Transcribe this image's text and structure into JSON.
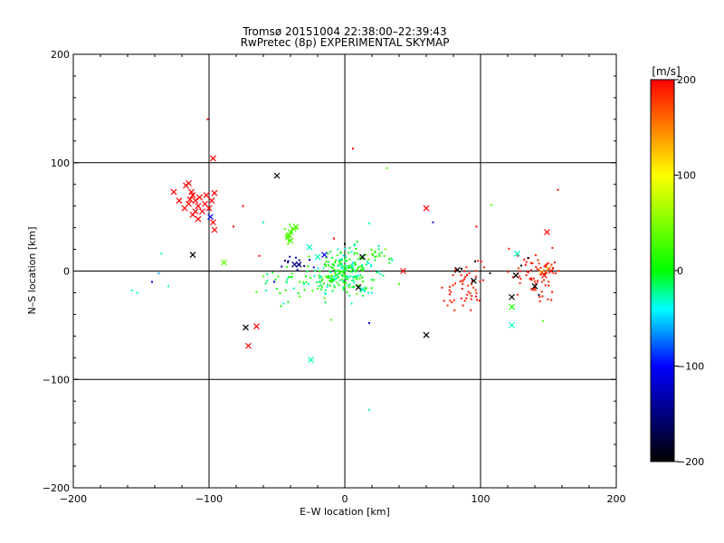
{
  "chart_data": {
    "type": "scatter",
    "title": "Tromsø 20151004 22:38:00–22:39:43",
    "subtitle": "RwPretec (8p) EXPERIMENTAL SKYMAP",
    "xlabel": "E–W location [km]",
    "ylabel": "N–S location [km]",
    "xlim": [
      -200,
      200
    ],
    "ylim": [
      -200,
      200
    ],
    "xticks": [
      -200,
      -100,
      0,
      100,
      200
    ],
    "yticks": [
      -200,
      -100,
      0,
      100,
      200
    ],
    "grid": true,
    "colorbar": {
      "label": "[m/s]",
      "min": -200,
      "max": 200,
      "ticks": [
        -200,
        -100,
        0,
        100,
        200
      ],
      "colors": [
        "#000000",
        "#0000ff",
        "#00ffff",
        "#00ff00",
        "#ffff00",
        "#ff0000"
      ]
    },
    "points_note": "v = line-of-sight velocity in m/s; marker x = cross, d = small dot",
    "points": [
      {
        "x": -113,
        "y": 73,
        "v": 200,
        "m": "x"
      },
      {
        "x": -117,
        "y": 79,
        "v": 200,
        "m": "x"
      },
      {
        "x": -115,
        "y": 81,
        "v": 200,
        "m": "x"
      },
      {
        "x": -112,
        "y": 70,
        "v": 200,
        "m": "x"
      },
      {
        "x": -110,
        "y": 65,
        "v": 200,
        "m": "x"
      },
      {
        "x": -115,
        "y": 62,
        "v": 200,
        "m": "x"
      },
      {
        "x": -118,
        "y": 58,
        "v": 200,
        "m": "x"
      },
      {
        "x": -122,
        "y": 65,
        "v": 200,
        "m": "x"
      },
      {
        "x": -108,
        "y": 60,
        "v": 200,
        "m": "x"
      },
      {
        "x": -105,
        "y": 55,
        "v": 200,
        "m": "x"
      },
      {
        "x": -112,
        "y": 52,
        "v": 200,
        "m": "x"
      },
      {
        "x": -100,
        "y": 58,
        "v": 200,
        "m": "x"
      },
      {
        "x": -98,
        "y": 65,
        "v": 200,
        "m": "x"
      },
      {
        "x": -96,
        "y": 72,
        "v": 200,
        "m": "x"
      },
      {
        "x": -102,
        "y": 70,
        "v": 200,
        "m": "x"
      },
      {
        "x": -126,
        "y": 73,
        "v": 200,
        "m": "x"
      },
      {
        "x": -103,
        "y": 62,
        "v": 200,
        "m": "x"
      },
      {
        "x": -107,
        "y": 68,
        "v": 200,
        "m": "x"
      },
      {
        "x": -110,
        "y": 55,
        "v": 200,
        "m": "x"
      },
      {
        "x": -97,
        "y": 45,
        "v": 200,
        "m": "x"
      },
      {
        "x": -96,
        "y": 38,
        "v": 200,
        "m": "x"
      },
      {
        "x": -97,
        "y": 104,
        "v": 200,
        "m": "x"
      },
      {
        "x": -101,
        "y": 140,
        "v": 200,
        "m": "d"
      },
      {
        "x": -75,
        "y": 60,
        "v": 200,
        "m": "d"
      },
      {
        "x": -108,
        "y": 48,
        "v": 200,
        "m": "x"
      },
      {
        "x": -114,
        "y": 66,
        "v": 200,
        "m": "x"
      },
      {
        "x": -99,
        "y": 50,
        "v": -100,
        "m": "x"
      },
      {
        "x": -50,
        "y": 88,
        "v": -200,
        "m": "x"
      },
      {
        "x": -112,
        "y": 15,
        "v": -200,
        "m": "x"
      },
      {
        "x": -73,
        "y": -52,
        "v": -200,
        "m": "x"
      },
      {
        "x": -65,
        "y": -51,
        "v": 200,
        "m": "x"
      },
      {
        "x": -71,
        "y": -69,
        "v": 200,
        "m": "x"
      },
      {
        "x": -89,
        "y": 8,
        "v": 40,
        "m": "x"
      },
      {
        "x": -25,
        "y": -82,
        "v": -30,
        "m": "x"
      },
      {
        "x": 60,
        "y": 58,
        "v": 200,
        "m": "x"
      },
      {
        "x": 60,
        "y": -59,
        "v": -200,
        "m": "x"
      },
      {
        "x": 43,
        "y": 0,
        "v": 200,
        "m": "x"
      },
      {
        "x": 149,
        "y": 36,
        "v": 200,
        "m": "x"
      },
      {
        "x": 127,
        "y": 16,
        "v": -30,
        "m": "x"
      },
      {
        "x": 123,
        "y": -24,
        "v": -200,
        "m": "x"
      },
      {
        "x": 123,
        "y": -33,
        "v": 10,
        "m": "x"
      },
      {
        "x": 123,
        "y": -50,
        "v": -30,
        "m": "x"
      },
      {
        "x": 126,
        "y": -4,
        "v": -200,
        "m": "x"
      },
      {
        "x": 140,
        "y": -14,
        "v": -200,
        "m": "x"
      },
      {
        "x": 83,
        "y": 1,
        "v": -200,
        "m": "x"
      },
      {
        "x": 95,
        "y": -9,
        "v": -200,
        "m": "x"
      },
      {
        "x": 10,
        "y": -15,
        "v": -200,
        "m": "x"
      },
      {
        "x": 13,
        "y": -17,
        "v": -30,
        "m": "x"
      },
      {
        "x": -41,
        "y": 33,
        "v": 30,
        "m": "x"
      },
      {
        "x": -40,
        "y": 36,
        "v": 30,
        "m": "x"
      },
      {
        "x": -38,
        "y": 39,
        "v": 30,
        "m": "x"
      },
      {
        "x": -42,
        "y": 31,
        "v": 30,
        "m": "x"
      },
      {
        "x": -36,
        "y": 41,
        "v": 30,
        "m": "x"
      },
      {
        "x": -40,
        "y": 28,
        "v": 30,
        "m": "x"
      },
      {
        "x": -37,
        "y": 6,
        "v": -150,
        "m": "x"
      },
      {
        "x": -34,
        "y": 6,
        "v": -150,
        "m": "x"
      },
      {
        "x": -20,
        "y": 13,
        "v": -30,
        "m": "x"
      },
      {
        "x": -26,
        "y": 22,
        "v": -30,
        "m": "x"
      },
      {
        "x": -15,
        "y": 15,
        "v": -100,
        "m": "x"
      },
      {
        "x": 145,
        "y": -1,
        "v": 140,
        "m": "x"
      },
      {
        "x": 150,
        "y": 2,
        "v": 140,
        "m": "x"
      },
      {
        "x": 147,
        "y": -4,
        "v": 200,
        "m": "x"
      },
      {
        "x": 152,
        "y": 0,
        "v": 200,
        "m": "x"
      },
      {
        "x": 13,
        "y": 13,
        "v": -200,
        "m": "x"
      },
      {
        "x": 6,
        "y": 113,
        "v": 200,
        "m": "d"
      },
      {
        "x": 31,
        "y": 95,
        "v": 30,
        "m": "d"
      },
      {
        "x": 157,
        "y": 75,
        "v": 200,
        "m": "d"
      },
      {
        "x": 108,
        "y": 61,
        "v": 30,
        "m": "d"
      },
      {
        "x": 65,
        "y": 45,
        "v": -100,
        "m": "d"
      },
      {
        "x": 18,
        "y": -48,
        "v": -100,
        "m": "d"
      },
      {
        "x": 18,
        "y": -128,
        "v": -30,
        "m": "d"
      },
      {
        "x": 97,
        "y": 41,
        "v": 200,
        "m": "d"
      },
      {
        "x": 146,
        "y": -46,
        "v": 30,
        "m": "d"
      },
      {
        "x": 18,
        "y": 44,
        "v": -30,
        "m": "d"
      },
      {
        "x": -63,
        "y": 14,
        "v": 200,
        "m": "d"
      },
      {
        "x": -82,
        "y": 41,
        "v": 200,
        "m": "d"
      },
      {
        "x": -60,
        "y": 45,
        "v": -30,
        "m": "d"
      },
      {
        "x": -135,
        "y": 16,
        "v": -30,
        "m": "d"
      },
      {
        "x": -142,
        "y": -10,
        "v": -100,
        "m": "d"
      },
      {
        "x": -153,
        "y": -20,
        "v": -30,
        "m": "d"
      },
      {
        "x": -130,
        "y": -14,
        "v": -30,
        "m": "d"
      },
      {
        "x": -157,
        "y": -18,
        "v": -30,
        "m": "d"
      },
      {
        "x": -137,
        "y": -2,
        "v": -60,
        "m": "d"
      },
      {
        "x": -10,
        "y": -45,
        "v": 30,
        "m": "d"
      },
      {
        "x": -30,
        "y": -12,
        "v": -30,
        "m": "d"
      },
      {
        "x": -45,
        "y": -30,
        "v": -30,
        "m": "d"
      },
      {
        "x": -58,
        "y": -18,
        "v": -30,
        "m": "d"
      },
      {
        "x": -52,
        "y": -10,
        "v": -100,
        "m": "d"
      },
      {
        "x": -60,
        "y": -5,
        "v": 30,
        "m": "d"
      },
      {
        "x": -8,
        "y": 30,
        "v": 200,
        "m": "d"
      },
      {
        "x": -5,
        "y": 20,
        "v": -30,
        "m": "d"
      },
      {
        "x": 25,
        "y": 23,
        "v": -30,
        "m": "d"
      },
      {
        "x": 30,
        "y": 20,
        "v": 60,
        "m": "d"
      },
      {
        "x": 35,
        "y": 10,
        "v": -30,
        "m": "d"
      },
      {
        "x": 40,
        "y": -12,
        "v": 30,
        "m": "d"
      },
      {
        "x": 20,
        "y": -20,
        "v": -30,
        "m": "d"
      },
      {
        "x": 5,
        "y": -30,
        "v": -30,
        "m": "d"
      },
      {
        "x": -15,
        "y": -25,
        "v": 30,
        "m": "d"
      },
      {
        "x": 0,
        "y": 25,
        "v": -200,
        "m": "d"
      },
      {
        "x": 86,
        "y": 2,
        "v": -200,
        "m": "d"
      },
      {
        "x": 107,
        "y": -2,
        "v": -200,
        "m": "d"
      },
      {
        "x": 96,
        "y": 9,
        "v": -200,
        "m": "d"
      },
      {
        "x": 135,
        "y": 12,
        "v": -200,
        "m": "d"
      },
      {
        "x": 130,
        "y": 5,
        "v": -200,
        "m": "d"
      },
      {
        "x": 143,
        "y": -22,
        "v": -200,
        "m": "d"
      }
    ],
    "clusters": [
      {
        "cx": 0,
        "cy": -2,
        "sx": 11,
        "sy": 9,
        "n": 230,
        "vmin": -40,
        "vmax": 30,
        "m": "d",
        "seed": 11
      },
      {
        "cx": -30,
        "cy": -12,
        "sx": 16,
        "sy": 8,
        "n": 40,
        "vmin": -30,
        "vmax": 20,
        "m": "d",
        "seed": 23
      },
      {
        "cx": 18,
        "cy": 14,
        "sx": 10,
        "sy": 5,
        "n": 28,
        "vmin": -40,
        "vmax": 40,
        "m": "d",
        "seed": 37
      },
      {
        "cx": 88,
        "cy": -12,
        "sx": 7,
        "sy": 13,
        "n": 55,
        "vmin": 180,
        "vmax": 200,
        "m": "d",
        "seed": 41
      },
      {
        "cx": 140,
        "cy": -2,
        "sx": 9,
        "sy": 12,
        "n": 70,
        "vmin": 180,
        "vmax": 200,
        "m": "d",
        "seed": 53
      },
      {
        "cx": -36,
        "cy": 8,
        "sx": 8,
        "sy": 3,
        "n": 12,
        "vmin": -160,
        "vmax": -110,
        "m": "d",
        "seed": 67
      },
      {
        "cx": -40,
        "cy": 33,
        "sx": 2,
        "sy": 5,
        "n": 10,
        "vmin": 20,
        "vmax": 40,
        "m": "d",
        "seed": 79
      }
    ]
  }
}
